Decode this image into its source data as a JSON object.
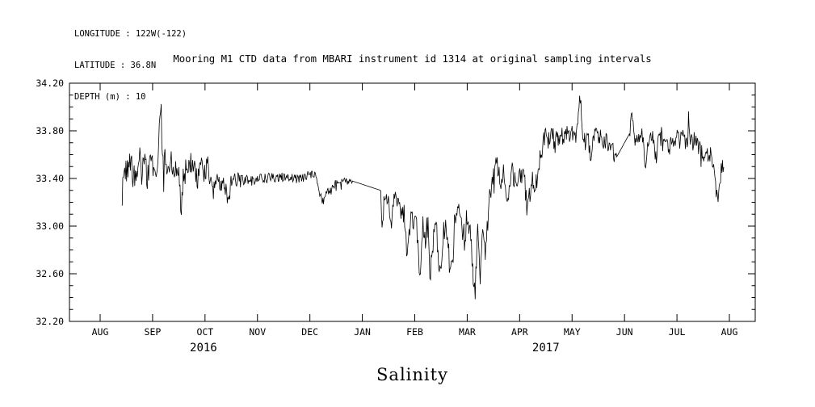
{
  "header": {
    "longitude": "LONGITUDE : 122W(-122)",
    "latitude": "LATITUDE : 36.8N",
    "depth": "DEPTH (m) : 10"
  },
  "title": "Mooring M1 CTD data from MBARI instrument id 1314 at original sampling intervals",
  "chart_data": {
    "type": "line",
    "title": "Mooring M1 CTD data from MBARI instrument id 1314 at original sampling intervals",
    "caption": "Salinity",
    "line_color": "#000000",
    "ylim": [
      32.2,
      34.2
    ],
    "y_major_step": 0.4,
    "y_minor_step": 0.1,
    "y_tick_labels": [
      "32.20",
      "32.60",
      "33.00",
      "33.40",
      "33.80",
      "34.20"
    ],
    "x_unit": "months from 2016-08-01",
    "x_tick_labels": [
      "AUG",
      "SEP",
      "OCT",
      "NOV",
      "DEC",
      "JAN",
      "FEB",
      "MAR",
      "APR",
      "MAY",
      "JUN",
      "JUL",
      "AUG"
    ],
    "year_labels": [
      {
        "label": "2016",
        "x": 1.97
      },
      {
        "label": "2017",
        "x": 8.5
      }
    ],
    "grid": "off",
    "legend": "none",
    "smooth_ranges": [
      [
        4.8,
        5.35
      ],
      [
        9.85,
        10.1
      ]
    ],
    "noise_envelope": [
      [
        0.42,
        0.13
      ],
      [
        1.0,
        0.12
      ],
      [
        2.0,
        0.1
      ],
      [
        2.5,
        0.06
      ],
      [
        3.0,
        0.045
      ],
      [
        4.0,
        0.04
      ],
      [
        4.8,
        0.03
      ],
      [
        5.35,
        0.05
      ],
      [
        5.9,
        0.1
      ],
      [
        6.5,
        0.13
      ],
      [
        7.2,
        0.13
      ],
      [
        7.8,
        0.1
      ],
      [
        8.3,
        0.08
      ],
      [
        9.0,
        0.07
      ],
      [
        9.85,
        0.06
      ],
      [
        10.1,
        0.07
      ],
      [
        11.0,
        0.07
      ],
      [
        11.9,
        0.08
      ]
    ],
    "series": [
      {
        "name": "salinity",
        "anchors": [
          [
            0.42,
            33.3
          ],
          [
            0.45,
            33.5
          ],
          [
            0.5,
            33.45
          ],
          [
            0.55,
            33.52
          ],
          [
            0.6,
            33.48
          ],
          [
            0.65,
            33.42
          ],
          [
            0.7,
            33.5
          ],
          [
            0.75,
            33.55
          ],
          [
            0.8,
            33.48
          ],
          [
            0.85,
            33.52
          ],
          [
            0.9,
            33.45
          ],
          [
            0.95,
            33.5
          ],
          [
            1.0,
            33.52
          ],
          [
            1.05,
            33.48
          ],
          [
            1.1,
            33.55
          ],
          [
            1.15,
            34.08
          ],
          [
            1.2,
            33.5
          ],
          [
            1.25,
            33.55
          ],
          [
            1.3,
            33.48
          ],
          [
            1.35,
            33.55
          ],
          [
            1.4,
            33.5
          ],
          [
            1.45,
            33.45
          ],
          [
            1.5,
            33.52
          ],
          [
            1.55,
            33.15
          ],
          [
            1.6,
            33.48
          ],
          [
            1.65,
            33.52
          ],
          [
            1.7,
            33.55
          ],
          [
            1.75,
            33.5
          ],
          [
            1.8,
            33.45
          ],
          [
            1.85,
            33.4
          ],
          [
            1.9,
            33.45
          ],
          [
            1.95,
            33.5
          ],
          [
            2.0,
            33.45
          ],
          [
            2.05,
            33.5
          ],
          [
            2.1,
            33.35
          ],
          [
            2.15,
            33.3
          ],
          [
            2.2,
            33.38
          ],
          [
            2.25,
            33.42
          ],
          [
            2.3,
            33.35
          ],
          [
            2.35,
            33.4
          ],
          [
            2.4,
            33.3
          ],
          [
            2.45,
            33.2
          ],
          [
            2.5,
            33.38
          ],
          [
            2.6,
            33.4
          ],
          [
            2.7,
            33.38
          ],
          [
            2.8,
            33.4
          ],
          [
            2.9,
            33.38
          ],
          [
            3.0,
            33.4
          ],
          [
            3.2,
            33.4
          ],
          [
            3.4,
            33.41
          ],
          [
            3.6,
            33.4
          ],
          [
            3.8,
            33.39
          ],
          [
            4.0,
            33.44
          ],
          [
            4.1,
            33.44
          ],
          [
            4.15,
            33.35
          ],
          [
            4.2,
            33.25
          ],
          [
            4.25,
            33.2
          ],
          [
            4.3,
            33.28
          ],
          [
            4.4,
            33.3
          ],
          [
            4.5,
            33.37
          ],
          [
            4.6,
            33.37
          ],
          [
            4.7,
            33.38
          ],
          [
            4.8,
            33.38
          ],
          [
            5.35,
            33.3
          ],
          [
            5.38,
            32.95
          ],
          [
            5.42,
            33.26
          ],
          [
            5.5,
            33.2
          ],
          [
            5.55,
            32.95
          ],
          [
            5.6,
            33.22
          ],
          [
            5.65,
            33.25
          ],
          [
            5.7,
            33.15
          ],
          [
            5.8,
            33.1
          ],
          [
            5.85,
            32.75
          ],
          [
            5.9,
            33.05
          ],
          [
            5.95,
            33.1
          ],
          [
            6.0,
            33.0
          ],
          [
            6.05,
            32.95
          ],
          [
            6.1,
            32.55
          ],
          [
            6.15,
            33.0
          ],
          [
            6.2,
            32.9
          ],
          [
            6.25,
            33.0
          ],
          [
            6.3,
            32.55
          ],
          [
            6.35,
            32.95
          ],
          [
            6.4,
            33.05
          ],
          [
            6.45,
            32.8
          ],
          [
            6.5,
            32.5
          ],
          [
            6.55,
            32.95
          ],
          [
            6.6,
            33.05
          ],
          [
            6.65,
            32.9
          ],
          [
            6.7,
            32.6
          ],
          [
            6.75,
            33.0
          ],
          [
            6.8,
            33.1
          ],
          [
            6.85,
            33.2
          ],
          [
            6.9,
            33.05
          ],
          [
            6.95,
            32.85
          ],
          [
            7.0,
            33.1
          ],
          [
            7.05,
            32.95
          ],
          [
            7.1,
            32.7
          ],
          [
            7.15,
            32.42
          ],
          [
            7.2,
            32.9
          ],
          [
            7.25,
            32.6
          ],
          [
            7.3,
            33.0
          ],
          [
            7.35,
            32.75
          ],
          [
            7.4,
            33.1
          ],
          [
            7.45,
            33.3
          ],
          [
            7.5,
            33.45
          ],
          [
            7.55,
            33.55
          ],
          [
            7.6,
            33.5
          ],
          [
            7.65,
            33.35
          ],
          [
            7.7,
            33.45
          ],
          [
            7.75,
            33.2
          ],
          [
            7.8,
            33.35
          ],
          [
            7.85,
            33.45
          ],
          [
            7.9,
            33.4
          ],
          [
            7.95,
            33.3
          ],
          [
            8.0,
            33.4
          ],
          [
            8.05,
            33.45
          ],
          [
            8.1,
            33.35
          ],
          [
            8.15,
            33.1
          ],
          [
            8.2,
            33.3
          ],
          [
            8.25,
            33.4
          ],
          [
            8.3,
            33.35
          ],
          [
            8.35,
            33.45
          ],
          [
            8.4,
            33.6
          ],
          [
            8.45,
            33.7
          ],
          [
            8.5,
            33.78
          ],
          [
            8.55,
            33.72
          ],
          [
            8.6,
            33.8
          ],
          [
            8.65,
            33.75
          ],
          [
            8.7,
            33.82
          ],
          [
            8.75,
            33.7
          ],
          [
            8.8,
            33.78
          ],
          [
            8.85,
            33.72
          ],
          [
            8.9,
            33.8
          ],
          [
            8.95,
            33.75
          ],
          [
            9.0,
            33.78
          ],
          [
            9.05,
            33.72
          ],
          [
            9.1,
            33.8
          ],
          [
            9.15,
            34.12
          ],
          [
            9.2,
            33.78
          ],
          [
            9.25,
            33.7
          ],
          [
            9.3,
            33.78
          ],
          [
            9.35,
            33.55
          ],
          [
            9.4,
            33.75
          ],
          [
            9.45,
            33.8
          ],
          [
            9.5,
            33.72
          ],
          [
            9.55,
            33.78
          ],
          [
            9.6,
            33.7
          ],
          [
            9.65,
            33.75
          ],
          [
            9.7,
            33.65
          ],
          [
            9.75,
            33.72
          ],
          [
            9.8,
            33.6
          ],
          [
            9.85,
            33.58
          ],
          [
            10.1,
            33.78
          ],
          [
            10.12,
            33.95
          ],
          [
            10.18,
            33.8
          ],
          [
            10.25,
            33.75
          ],
          [
            10.3,
            33.7
          ],
          [
            10.35,
            33.78
          ],
          [
            10.4,
            33.4
          ],
          [
            10.45,
            33.7
          ],
          [
            10.5,
            33.72
          ],
          [
            10.55,
            33.75
          ],
          [
            10.6,
            33.55
          ],
          [
            10.65,
            33.72
          ],
          [
            10.7,
            33.78
          ],
          [
            10.75,
            33.7
          ],
          [
            10.8,
            33.75
          ],
          [
            10.85,
            33.65
          ],
          [
            10.9,
            33.72
          ],
          [
            10.95,
            33.68
          ],
          [
            11.0,
            33.75
          ],
          [
            11.05,
            33.7
          ],
          [
            11.1,
            33.78
          ],
          [
            11.15,
            33.72
          ],
          [
            11.2,
            33.68
          ],
          [
            11.22,
            33.9
          ],
          [
            11.25,
            33.75
          ],
          [
            11.3,
            33.7
          ],
          [
            11.35,
            33.78
          ],
          [
            11.4,
            33.65
          ],
          [
            11.45,
            33.7
          ],
          [
            11.5,
            33.6
          ],
          [
            11.55,
            33.65
          ],
          [
            11.6,
            33.55
          ],
          [
            11.65,
            33.6
          ],
          [
            11.7,
            33.45
          ],
          [
            11.75,
            33.3
          ],
          [
            11.8,
            33.25
          ],
          [
            11.85,
            33.5
          ],
          [
            11.9,
            33.55
          ]
        ]
      }
    ]
  }
}
